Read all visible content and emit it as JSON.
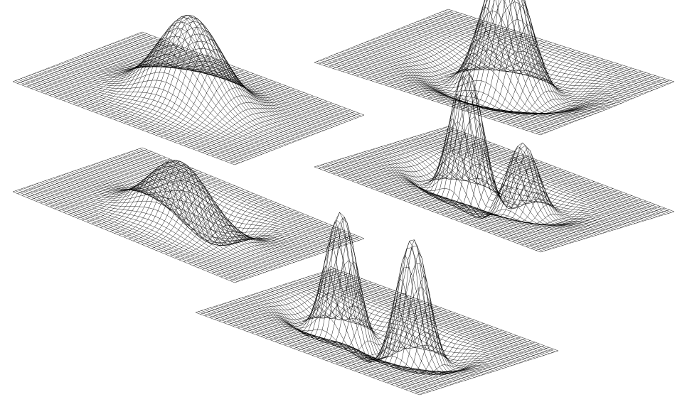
{
  "figure": {
    "description_visible_text": "",
    "background_color": "#ffffff",
    "line_color": "#000000",
    "grid_resolution": 48,
    "surfaces": [
      {
        "id": "surface-gaussian",
        "kind": "gaussian",
        "peak_height": 1.0
      },
      {
        "id": "surface-mexican-hat",
        "kind": "mexican-hat",
        "peak_height": 1.0
      },
      {
        "id": "surface-gaussian-derivative",
        "kind": "gaussian-derivative",
        "peak_height": 1.0
      },
      {
        "id": "surface-double-peak-asym",
        "kind": "double-peak-asym",
        "peak_height": 1.0
      },
      {
        "id": "surface-double-peak",
        "kind": "double-peak",
        "peak_height": 1.0
      }
    ]
  }
}
